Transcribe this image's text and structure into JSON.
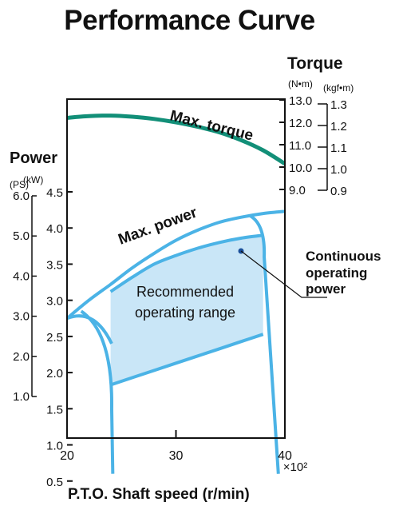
{
  "page_title": "Performance Curve",
  "colors": {
    "power": "#4bb3e6",
    "torque": "#128f78",
    "range_fill": "#c9e6f7",
    "axis": "#111111"
  },
  "chart_data": {
    "type": "line",
    "title": "Performance Curve",
    "xlabel": "P.T.O. Shaft speed  (r/min)",
    "x_multiplier": "×10²",
    "xlim": [
      20,
      40
    ],
    "x_ticks": [
      "20",
      "30",
      "40"
    ],
    "power_axis": {
      "label": "Power",
      "ylim_kw": [
        0.2,
        4.7
      ],
      "kw_unit": "(kW)",
      "kw_ticks": [
        "0.5",
        "1.0",
        "1.5",
        "2.0",
        "2.5",
        "3.0",
        "3.5",
        "4.0",
        "4.5"
      ],
      "ps_unit": "(PS)",
      "ps_ticks": [
        "1.0",
        "2.0",
        "3.0",
        "4.0",
        "5.0",
        "6.0"
      ]
    },
    "torque_axis": {
      "label": "Torque",
      "nm_unit": "(N•m)",
      "nm_ticks": [
        "9.0",
        "10.0",
        "11.0",
        "12.0",
        "13.0"
      ],
      "kgf_unit": "(kgf•m)",
      "kgf_ticks": [
        "0.9",
        "1.0",
        "1.1",
        "1.2",
        "1.3"
      ]
    },
    "series": [
      {
        "name": "Max. torque",
        "axis": "torque_nm",
        "x": [
          20,
          22,
          24,
          26,
          28,
          30,
          32,
          34,
          36,
          38,
          40
        ],
        "y": [
          12.2,
          12.28,
          12.3,
          12.25,
          12.15,
          12.0,
          11.8,
          11.55,
          11.2,
          10.75,
          10.15
        ]
      },
      {
        "name": "Max. power",
        "axis": "power_kw",
        "x": [
          20,
          22,
          24,
          26,
          28,
          30,
          32,
          34,
          36,
          38,
          40
        ],
        "y": [
          2.75,
          3.0,
          3.22,
          3.45,
          3.65,
          3.83,
          3.97,
          4.08,
          4.15,
          4.2,
          4.23
        ]
      }
    ],
    "regions": [
      {
        "label": "Recommended operating range",
        "x_range": [
          24,
          38
        ],
        "bottom_kw": [
          1.83,
          1.93,
          2.03,
          2.13,
          2.23,
          2.33,
          2.43,
          2.53
        ],
        "top_kw": [
          3.12,
          3.32,
          3.5,
          3.62,
          3.72,
          3.8,
          3.86,
          3.9
        ]
      }
    ],
    "annotations": [
      {
        "text": "Continuous operating power",
        "x": 35.5,
        "y_kw": 3.55
      }
    ],
    "grid": false
  }
}
